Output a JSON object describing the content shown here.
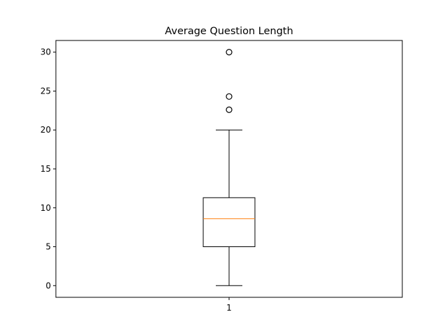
{
  "chart_data": {
    "type": "box",
    "title": "Average Question Length",
    "xlabel": "",
    "ylabel": "",
    "categories": [
      "1"
    ],
    "ylim": [
      -1.5,
      31.5
    ],
    "yticks": [
      0,
      5,
      10,
      15,
      20,
      25,
      30
    ],
    "ytick_labels": [
      "0",
      "5",
      "10",
      "15",
      "20",
      "25",
      "30"
    ],
    "xtick_labels": [
      "1"
    ],
    "grid": false,
    "boxes": [
      {
        "category": "1",
        "whisker_low": 0,
        "q1": 5,
        "median": 8.6,
        "q3": 11.3,
        "whisker_high": 20,
        "outliers": [
          22.6,
          24.3,
          30
        ]
      }
    ],
    "colors": {
      "box": "#000000",
      "median": "#ff7f0e",
      "outlier": "#000000"
    }
  }
}
